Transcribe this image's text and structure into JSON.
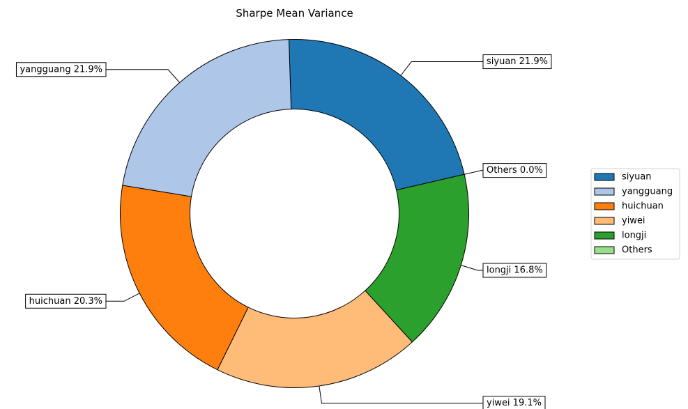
{
  "chart_data": {
    "type": "pie",
    "title": "Sharpe Mean Variance",
    "donut": true,
    "labels": [
      "siyuan",
      "yangguang",
      "huichuan",
      "yiwei",
      "longji",
      "Others"
    ],
    "values": [
      21.9,
      21.9,
      20.3,
      19.1,
      16.8,
      0.0
    ],
    "callout_labels": [
      "siyuan 21.9%",
      "yangguang 21.9%",
      "huichuan 20.3%",
      "yiwei 19.1%",
      "longji 16.8%",
      "Others 0.0%"
    ],
    "colors": [
      "#1f77b4",
      "#aec7e8",
      "#ff7f0e",
      "#ffbb78",
      "#2ca02c",
      "#98df8a"
    ],
    "legend": {
      "position": "right",
      "items": [
        "siyuan",
        "yangguang",
        "huichuan",
        "yiwei",
        "longji",
        "Others"
      ]
    }
  }
}
